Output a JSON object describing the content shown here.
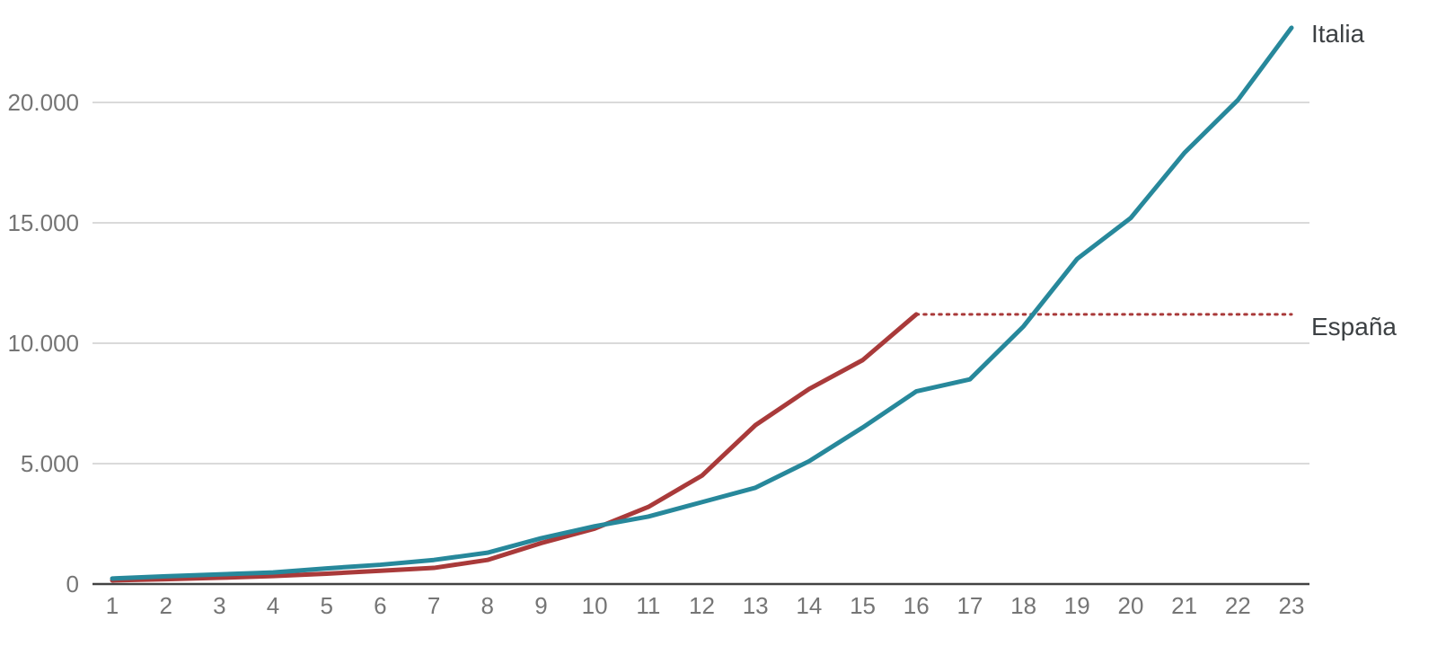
{
  "chart_data": {
    "type": "line",
    "title": "",
    "xlabel": "",
    "ylabel": "",
    "grid": true,
    "background_color": "#ffffff",
    "gridline_color": "#dadada",
    "axis_line_color": "#424242",
    "tick_label_color": "#757575",
    "series_label_color": "#3c4043",
    "x_tick_labels": [
      "1",
      "2",
      "3",
      "4",
      "5",
      "6",
      "7",
      "8",
      "9",
      "10",
      "11",
      "12",
      "13",
      "14",
      "15",
      "16",
      "17",
      "18",
      "19",
      "20",
      "21",
      "22",
      "23"
    ],
    "y_ticks": [
      {
        "value": 0,
        "label": "0"
      },
      {
        "value": 5000,
        "label": "5.000"
      },
      {
        "value": 10000,
        "label": "10.000"
      },
      {
        "value": 15000,
        "label": "15.000"
      },
      {
        "value": 20000,
        "label": "20.000"
      }
    ],
    "xlim": [
      1,
      23
    ],
    "ylim": [
      0,
      23700
    ],
    "legend_position": "right-end-labels",
    "series": [
      {
        "name": "Italia",
        "color": "#27889b",
        "style": "solid",
        "x": [
          1,
          2,
          3,
          4,
          5,
          6,
          7,
          8,
          9,
          10,
          11,
          12,
          13,
          14,
          15,
          16,
          17,
          18,
          19,
          20,
          21,
          22,
          23
        ],
        "values": [
          230,
          320,
          400,
          480,
          650,
          800,
          1000,
          1300,
          1900,
          2400,
          2800,
          3400,
          4000,
          5100,
          6500,
          8000,
          8500,
          10700,
          13500,
          15200,
          17900,
          20100,
          23100
        ]
      },
      {
        "name": "España",
        "color": "#a93a3a",
        "style": "solid",
        "x": [
          1,
          2,
          3,
          4,
          5,
          6,
          7,
          8,
          9,
          10,
          11,
          12,
          13,
          14,
          15,
          16
        ],
        "values": [
          150,
          200,
          260,
          330,
          430,
          550,
          670,
          1000,
          1700,
          2300,
          3200,
          4500,
          6600,
          8100,
          9300,
          11200
        ],
        "extension": {
          "style": "dotted",
          "from_x": 16,
          "to_x": 23,
          "value": 11200
        }
      }
    ]
  },
  "labels": {
    "italia": "Italia",
    "espana": "España"
  }
}
